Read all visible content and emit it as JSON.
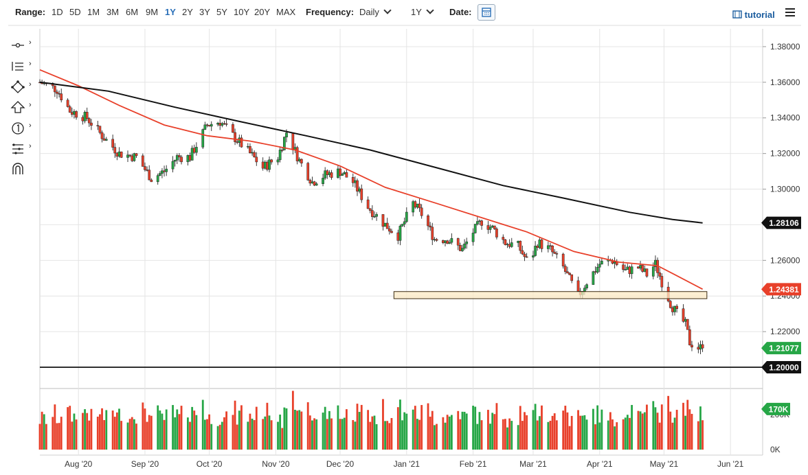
{
  "toolbar": {
    "range_label": "Range:",
    "ranges": [
      "1D",
      "5D",
      "1M",
      "3M",
      "6M",
      "9M",
      "1Y",
      "2Y",
      "3Y",
      "5Y",
      "10Y",
      "20Y",
      "MAX"
    ],
    "active_range": "1Y",
    "frequency_label": "Frequency:",
    "frequency_value": "Daily",
    "period_value": "1Y",
    "date_label": "Date:",
    "tutorial_label": "tutorial"
  },
  "left_tools": [
    {
      "icon": "crosshair-icon"
    },
    {
      "icon": "indicators-icon"
    },
    {
      "icon": "drawing-icon"
    },
    {
      "icon": "arrow-up-icon"
    },
    {
      "icon": "annotation-icon"
    },
    {
      "icon": "fibonacci-icon"
    },
    {
      "icon": "magnet-icon"
    }
  ],
  "colors": {
    "up": "#26a646",
    "down": "#e8402a",
    "ma_fast": "#e8402a",
    "ma_slow": "#111111",
    "zone_fill": "#fbe9c4",
    "zone_stroke": "#3a2a10",
    "grid": "#e4e4e4"
  },
  "chart_data": {
    "type": "candlestick",
    "title": "",
    "ylim": [
      1.195,
      1.39
    ],
    "y_ticks": [
      "1.38000",
      "1.36000",
      "1.34000",
      "1.32000",
      "1.30000",
      "1.28000",
      "1.26000",
      "1.24000",
      "1.22000"
    ],
    "x_ticks": [
      "Aug '20",
      "Sep '20",
      "Oct '20",
      "Nov '20",
      "Dec '20",
      "Jan '21",
      "Feb '21",
      "Mar '21",
      "Apr '21",
      "May '21",
      "Jun '21"
    ],
    "x_start": "2020-07-14",
    "x_end": "2021-06-16",
    "ohlc_keypoints": [
      {
        "date": "2020-07-14",
        "close": 1.36
      },
      {
        "date": "2020-07-22",
        "close": 1.356
      },
      {
        "date": "2020-07-28",
        "close": 1.344
      },
      {
        "date": "2020-08-05",
        "close": 1.34
      },
      {
        "date": "2020-08-12",
        "close": 1.33
      },
      {
        "date": "2020-08-20",
        "close": 1.32
      },
      {
        "date": "2020-08-28",
        "close": 1.318
      },
      {
        "date": "2020-09-04",
        "close": 1.306
      },
      {
        "date": "2020-09-10",
        "close": 1.31
      },
      {
        "date": "2020-09-16",
        "close": 1.318
      },
      {
        "date": "2020-09-22",
        "close": 1.318
      },
      {
        "date": "2020-09-30",
        "close": 1.336
      },
      {
        "date": "2020-10-06",
        "close": 1.338
      },
      {
        "date": "2020-10-12",
        "close": 1.33
      },
      {
        "date": "2020-10-20",
        "close": 1.32
      },
      {
        "date": "2020-10-26",
        "close": 1.312
      },
      {
        "date": "2020-11-02",
        "close": 1.318
      },
      {
        "date": "2020-11-06",
        "close": 1.332
      },
      {
        "date": "2020-11-12",
        "close": 1.316
      },
      {
        "date": "2020-11-18",
        "close": 1.304
      },
      {
        "date": "2020-11-24",
        "close": 1.308
      },
      {
        "date": "2020-12-01",
        "close": 1.31
      },
      {
        "date": "2020-12-07",
        "close": 1.304
      },
      {
        "date": "2020-12-14",
        "close": 1.29
      },
      {
        "date": "2020-12-22",
        "close": 1.28
      },
      {
        "date": "2020-12-28",
        "close": 1.274
      },
      {
        "date": "2021-01-04",
        "close": 1.292
      },
      {
        "date": "2021-01-08",
        "close": 1.286
      },
      {
        "date": "2021-01-14",
        "close": 1.272
      },
      {
        "date": "2021-01-20",
        "close": 1.272
      },
      {
        "date": "2021-01-27",
        "close": 1.266
      },
      {
        "date": "2021-02-01",
        "close": 1.276
      },
      {
        "date": "2021-02-05",
        "close": 1.282
      },
      {
        "date": "2021-02-10",
        "close": 1.278
      },
      {
        "date": "2021-02-16",
        "close": 1.27
      },
      {
        "date": "2021-02-22",
        "close": 1.268
      },
      {
        "date": "2021-02-27",
        "close": 1.258
      },
      {
        "date": "2021-03-03",
        "close": 1.27
      },
      {
        "date": "2021-03-09",
        "close": 1.266
      },
      {
        "date": "2021-03-15",
        "close": 1.256
      },
      {
        "date": "2021-03-22",
        "close": 1.24
      },
      {
        "date": "2021-03-26",
        "close": 1.248
      },
      {
        "date": "2021-04-01",
        "close": 1.258
      },
      {
        "date": "2021-04-07",
        "close": 1.26
      },
      {
        "date": "2021-04-13",
        "close": 1.254
      },
      {
        "date": "2021-04-19",
        "close": 1.256
      },
      {
        "date": "2021-04-23",
        "close": 1.252
      },
      {
        "date": "2021-04-27",
        "close": 1.258
      },
      {
        "date": "2021-04-30",
        "close": 1.248
      },
      {
        "date": "2021-05-04",
        "close": 1.236
      },
      {
        "date": "2021-05-07",
        "close": 1.23
      },
      {
        "date": "2021-05-11",
        "close": 1.224
      },
      {
        "date": "2021-05-13",
        "close": 1.214
      },
      {
        "date": "2021-05-17",
        "close": 1.211
      },
      {
        "date": "2021-05-19",
        "close": 1.21077
      }
    ],
    "series": [
      {
        "name": "",
        "type": "ma",
        "color_key": "ma_fast",
        "points": [
          [
            "2020-07-14",
            1.367
          ],
          [
            "2020-08-01",
            1.358
          ],
          [
            "2020-08-20",
            1.347
          ],
          [
            "2020-09-10",
            1.336
          ],
          [
            "2020-09-30",
            1.33
          ],
          [
            "2020-10-20",
            1.327
          ],
          [
            "2020-11-10",
            1.322
          ],
          [
            "2020-12-01",
            1.313
          ],
          [
            "2020-12-22",
            1.301
          ],
          [
            "2021-01-15",
            1.292
          ],
          [
            "2021-02-05",
            1.284
          ],
          [
            "2021-02-26",
            1.276
          ],
          [
            "2021-03-20",
            1.265
          ],
          [
            "2021-04-10",
            1.259
          ],
          [
            "2021-04-28",
            1.257
          ],
          [
            "2021-05-06",
            1.252
          ],
          [
            "2021-05-19",
            1.24381
          ]
        ]
      },
      {
        "name": "",
        "type": "ma",
        "color_key": "ma_slow",
        "points": [
          [
            "2020-07-14",
            1.36
          ],
          [
            "2020-08-15",
            1.355
          ],
          [
            "2020-09-15",
            1.346
          ],
          [
            "2020-10-15",
            1.338
          ],
          [
            "2020-11-15",
            1.33
          ],
          [
            "2020-12-15",
            1.322
          ],
          [
            "2021-01-15",
            1.312
          ],
          [
            "2021-02-15",
            1.302
          ],
          [
            "2021-03-15",
            1.295
          ],
          [
            "2021-04-15",
            1.287
          ],
          [
            "2021-05-05",
            1.283
          ],
          [
            "2021-05-19",
            1.28106
          ]
        ]
      }
    ],
    "horizontal_line": {
      "value": 1.2,
      "label": "1.20000"
    },
    "zone": {
      "start": "2020-12-28",
      "end": "2021-05-21",
      "low": 1.2385,
      "high": 1.2425
    },
    "last_labels": [
      {
        "text": "1.28106",
        "value": 1.28106,
        "color": "#111111"
      },
      {
        "text": "1.24381",
        "value": 1.24381,
        "color": "#e8402a"
      },
      {
        "text": "1.21077",
        "value": 1.21077,
        "color": "#26a646"
      },
      {
        "text": "1.20000",
        "value": 1.2,
        "color": "#111111"
      }
    ],
    "volume": {
      "max_label": "200K",
      "min_label": "0K",
      "last_label": "170K",
      "last_value": 170
    },
    "grid": true
  }
}
